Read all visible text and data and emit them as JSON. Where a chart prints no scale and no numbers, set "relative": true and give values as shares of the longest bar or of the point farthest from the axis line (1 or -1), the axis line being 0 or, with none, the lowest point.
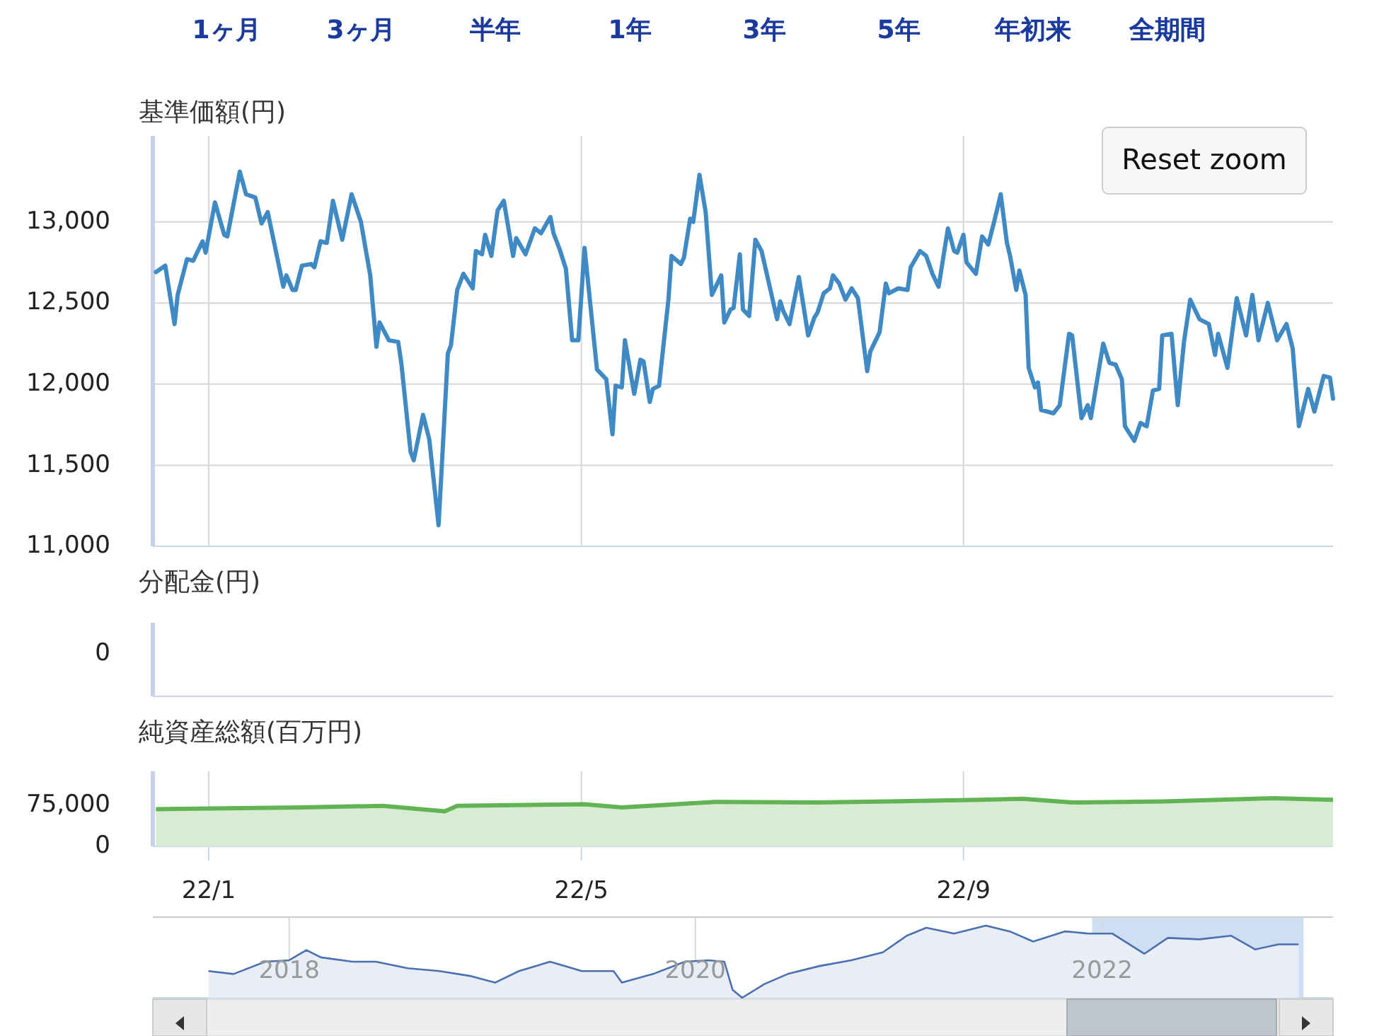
{
  "chart_data": [
    {
      "type": "line",
      "ylabel": "基準価額(円)",
      "annotations": [
        "1ヶ月",
        "3ヶ月",
        "半年",
        "1年",
        "3年",
        "5年",
        "年初来",
        "全期間",
        "Reset zoom"
      ],
      "xlim": [
        "2021-12-14",
        "2022-12-29"
      ],
      "ylim": [
        11000,
        13530
      ],
      "grid": true,
      "tick_labels": "y",
      "xticks": [
        {
          "value": "2022-01-01",
          "label": null
        },
        {
          "value": "2022-05-01",
          "label": null
        },
        {
          "value": "2022-09-01",
          "label": null
        }
      ],
      "yticks": [
        {
          "value": 11000,
          "label": "11,000"
        },
        {
          "value": 11500,
          "label": "11,500"
        },
        {
          "value": 12000,
          "label": "12,000"
        },
        {
          "value": 12500,
          "label": "12,500"
        },
        {
          "value": 13000,
          "label": "13,000"
        }
      ],
      "series": [
        {
          "color": "#3f8ac4",
          "x": [
            "2021-12-15",
            "2021-12-18",
            "2021-12-21",
            "2021-12-22",
            "2021-12-25",
            "2021-12-27",
            "2021-12-30",
            "2021-12-31",
            "2022-01-03",
            "2022-01-06",
            "2022-01-07",
            "2022-01-11",
            "2022-01-13",
            "2022-01-16",
            "2022-01-18",
            "2022-01-20",
            "2022-01-25",
            "2022-01-26",
            "2022-01-28",
            "2022-01-29",
            "2022-01-31",
            "2022-02-03",
            "2022-02-04",
            "2022-02-06",
            "2022-02-08",
            "2022-02-10",
            "2022-02-13",
            "2022-02-16",
            "2022-02-19",
            "2022-02-22",
            "2022-02-24",
            "2022-02-25",
            "2022-02-28",
            "2022-03-03",
            "2022-03-04",
            "2022-03-07",
            "2022-03-08",
            "2022-03-11",
            "2022-03-13",
            "2022-03-16",
            "2022-03-19",
            "2022-03-20",
            "2022-03-22",
            "2022-03-24",
            "2022-03-27",
            "2022-03-28",
            "2022-03-30",
            "2022-03-31",
            "2022-04-02",
            "2022-04-04",
            "2022-04-06",
            "2022-04-09",
            "2022-04-10",
            "2022-04-13",
            "2022-04-16",
            "2022-04-18",
            "2022-04-21",
            "2022-04-22",
            "2022-04-24",
            "2022-04-26",
            "2022-04-28",
            "2022-04-30",
            "2022-05-02",
            "2022-05-06",
            "2022-05-09",
            "2022-05-11",
            "2022-05-12",
            "2022-05-14",
            "2022-05-15",
            "2022-05-18",
            "2022-05-20",
            "2022-05-21",
            "2022-05-23",
            "2022-05-24",
            "2022-05-26",
            "2022-05-29",
            "2022-05-30",
            "2022-06-02",
            "2022-06-03",
            "2022-06-05",
            "2022-06-06",
            "2022-06-08",
            "2022-06-10",
            "2022-06-12",
            "2022-06-15",
            "2022-06-16",
            "2022-06-18",
            "2022-06-19",
            "2022-06-21",
            "2022-06-22",
            "2022-06-24",
            "2022-06-26",
            "2022-06-28",
            "2022-07-03",
            "2022-07-04",
            "2022-07-05",
            "2022-07-07",
            "2022-07-10",
            "2022-07-13",
            "2022-07-15",
            "2022-07-16",
            "2022-07-18",
            "2022-07-20",
            "2022-07-21",
            "2022-07-23",
            "2022-07-25",
            "2022-07-27",
            "2022-07-29",
            "2022-08-01",
            "2022-08-02",
            "2022-08-05",
            "2022-08-07",
            "2022-08-08",
            "2022-08-11",
            "2022-08-14",
            "2022-08-15",
            "2022-08-18",
            "2022-08-20",
            "2022-08-22",
            "2022-08-24",
            "2022-08-27",
            "2022-08-29",
            "2022-08-30",
            "2022-09-01",
            "2022-09-02",
            "2022-09-05",
            "2022-09-07",
            "2022-09-09",
            "2022-09-11",
            "2022-09-13",
            "2022-09-15",
            "2022-09-16",
            "2022-09-18",
            "2022-09-19",
            "2022-09-21",
            "2022-09-22",
            "2022-09-24",
            "2022-09-25",
            "2022-09-26",
            "2022-09-30",
            "2022-10-02",
            "2022-10-05",
            "2022-10-06",
            "2022-10-09",
            "2022-10-11",
            "2022-10-12",
            "2022-10-16",
            "2022-10-18",
            "2022-10-20",
            "2022-10-22",
            "2022-10-23",
            "2022-10-26",
            "2022-10-28",
            "2022-10-30",
            "2022-11-01",
            "2022-11-03",
            "2022-11-04",
            "2022-11-07",
            "2022-11-09",
            "2022-11-11",
            "2022-11-13",
            "2022-11-16",
            "2022-11-19",
            "2022-11-21",
            "2022-11-22",
            "2022-11-25",
            "2022-11-28",
            "2022-12-01",
            "2022-12-03",
            "2022-12-05",
            "2022-12-08",
            "2022-12-11",
            "2022-12-14",
            "2022-12-16",
            "2022-12-18",
            "2022-12-21",
            "2022-12-23",
            "2022-12-26",
            "2022-12-28",
            "2022-12-29"
          ],
          "values": [
            12690,
            12730,
            12370,
            12550,
            12770,
            12760,
            12880,
            12810,
            13120,
            12920,
            12910,
            13310,
            13170,
            13150,
            12990,
            13060,
            12600,
            12670,
            12580,
            12580,
            12730,
            12740,
            12720,
            12880,
            12870,
            13130,
            12890,
            13170,
            13000,
            12670,
            12230,
            12380,
            12270,
            12260,
            12130,
            11580,
            11530,
            11810,
            11660,
            11130,
            12190,
            12240,
            12580,
            12680,
            12590,
            12820,
            12800,
            12920,
            12790,
            13070,
            13130,
            12790,
            12900,
            12800,
            12960,
            12930,
            13030,
            12930,
            12830,
            12710,
            12270,
            12270,
            12840,
            12090,
            12030,
            11690,
            11990,
            11980,
            12270,
            11940,
            12150,
            12140,
            11890,
            11970,
            11990,
            12520,
            12790,
            12740,
            12780,
            13020,
            13000,
            13290,
            13060,
            12550,
            12670,
            12380,
            12460,
            12470,
            12800,
            12460,
            12420,
            12890,
            12820,
            12400,
            12510,
            12450,
            12370,
            12660,
            12300,
            12410,
            12440,
            12560,
            12590,
            12670,
            12620,
            12520,
            12590,
            12530,
            12080,
            12200,
            12320,
            12620,
            12560,
            12590,
            12580,
            12720,
            12820,
            12790,
            12680,
            12600,
            12960,
            12820,
            12810,
            12920,
            12750,
            12680,
            12910,
            12860,
            13010,
            13170,
            12870,
            12790,
            12580,
            12700,
            12550,
            12100,
            11980,
            12010,
            11840,
            11820,
            11870,
            12310,
            12300,
            11790,
            11870,
            11790,
            12250,
            12130,
            12120,
            12030,
            11740,
            11650,
            11760,
            11740,
            11960,
            11970,
            12300,
            12310,
            11870,
            12260,
            12520,
            12400,
            12370,
            12180,
            12310,
            12100,
            12530,
            12300,
            12550,
            12270,
            12500,
            12270,
            12370,
            12220,
            11740,
            11970,
            11830,
            12050,
            12040,
            11910
          ]
        }
      ]
    },
    {
      "type": "other",
      "ylabel": "分配金(円)",
      "annotations": [
        "0"
      ]
    },
    {
      "type": "area",
      "ylabel": "純資産総額(百万円)",
      "xlim": [
        "2021-12-14",
        "2022-12-29"
      ],
      "ylim": [
        0,
        137000
      ],
      "grid": "x",
      "xticks": [
        {
          "value": "2022-01-01",
          "label": "22/1"
        },
        {
          "value": "2022-05-01",
          "label": "22/5"
        },
        {
          "value": "2022-09-01",
          "label": "22/9"
        }
      ],
      "yticks": [
        0,
        {
          "value": 75000,
          "label": "75,000"
        }
      ],
      "series": [
        {
          "color": "#62b354",
          "x": [
            "2021-12-15",
            "2022-01-31",
            "2022-02-26",
            "2022-03-18",
            "2022-03-22",
            "2022-05-02",
            "2022-05-14",
            "2022-06-13",
            "2022-07-16",
            "2022-09-06",
            "2022-09-20",
            "2022-10-06",
            "2022-11-05",
            "2022-12-10",
            "2022-12-29"
          ],
          "values": [
            68000,
            71000,
            74000,
            64000,
            74000,
            77000,
            71000,
            81000,
            80000,
            85000,
            87000,
            80000,
            82000,
            88000,
            85000
          ]
        }
      ]
    },
    {
      "type": "area",
      "relative": true,
      "xlim": [
        "2017-05-01",
        "2023-02-20"
      ],
      "grid": "x",
      "tick_labels": "x",
      "xticks": [
        {
          "value": "2018-01-01",
          "label": "2018"
        },
        {
          "value": "2020-01-01",
          "label": "2020"
        },
        {
          "value": "2022-01-01",
          "label": "2022"
        }
      ],
      "bands": [
        {
          "axis": "x",
          "from": "2021-12-14",
          "to": "2022-12-29",
          "color": "#cfdff3"
        }
      ],
      "series": [
        {
          "color": "#4a70b0",
          "x": [
            "2017-08-09",
            "2017-09-23",
            "2017-11-19",
            "2018-01-01",
            "2018-02-01",
            "2018-02-27",
            "2018-04-25",
            "2018-06-06",
            "2018-08-02",
            "2018-09-28",
            "2018-11-24",
            "2019-01-06",
            "2019-02-18",
            "2019-04-15",
            "2019-06-11",
            "2019-08-07",
            "2019-08-22",
            "2019-10-17",
            "2019-12-13",
            "2020-01-25",
            "2020-02-22",
            "2020-03-08",
            "2020-03-25",
            "2020-05-04",
            "2020-06-15",
            "2020-08-11",
            "2020-10-07",
            "2020-12-03",
            "2021-01-15",
            "2021-02-19",
            "2021-04-10",
            "2021-06-06",
            "2021-07-19",
            "2021-08-30",
            "2021-10-26",
            "2021-12-08",
            "2022-01-19",
            "2022-03-18",
            "2022-04-29",
            "2022-06-25",
            "2022-08-21",
            "2022-10-03",
            "2022-11-14",
            "2022-12-20"
          ],
          "values": [
            0.37,
            0.33,
            0.5,
            0.52,
            0.66,
            0.56,
            0.5,
            0.5,
            0.41,
            0.37,
            0.3,
            0.21,
            0.37,
            0.5,
            0.37,
            0.37,
            0.21,
            0.33,
            0.5,
            0.52,
            0.5,
            0.11,
            0,
            0.19,
            0.33,
            0.44,
            0.52,
            0.63,
            0.86,
            0.97,
            0.89,
            1,
            0.92,
            0.78,
            0.92,
            0.89,
            0.89,
            0.61,
            0.83,
            0.81,
            0.86,
            0.67,
            0.74,
            0.74
          ]
        }
      ]
    }
  ]
}
